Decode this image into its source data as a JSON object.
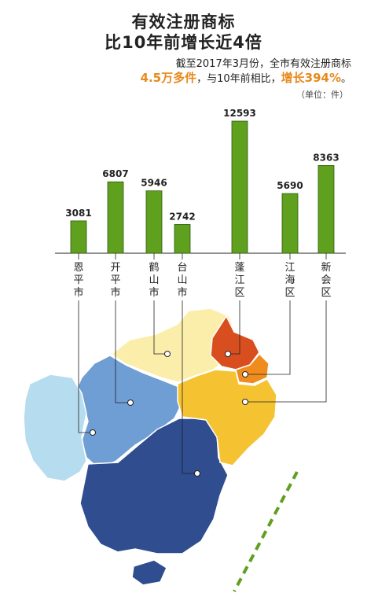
{
  "header": {
    "title_line1": "有效注册商标",
    "title_line2": "比10年前增长近4倍",
    "subtitle_a": "截至2017年3月份，全市有效注册商标",
    "subtitle_b_highlight": "4.5万多件",
    "subtitle_b_mid": "，与10年前相比，",
    "subtitle_b_highlight2": "增长394%",
    "subtitle_b_end": "。",
    "unit": "（单位：件）"
  },
  "colors": {
    "bar": "#5fa01e",
    "highlight": "#e8891c",
    "region_enping": "#b6dcef",
    "region_kaiping": "#6e9ed3",
    "region_heshan": "#fbeeaa",
    "region_taishan": "#2f4d8f",
    "region_pengjiang": "#d84e1e",
    "region_jianghai": "#f08c1e",
    "region_xinhui": "#f5c231",
    "dash": "#5fa01e"
  },
  "chart_data": {
    "type": "bar",
    "categories": [
      "恩平市",
      "开平市",
      "鹤山市",
      "台山市",
      "蓬江区",
      "江海区",
      "新会区"
    ],
    "values": [
      3081,
      6807,
      5946,
      2742,
      12593,
      5690,
      8363
    ],
    "ylabel": "",
    "unit": "（单位：件）"
  }
}
